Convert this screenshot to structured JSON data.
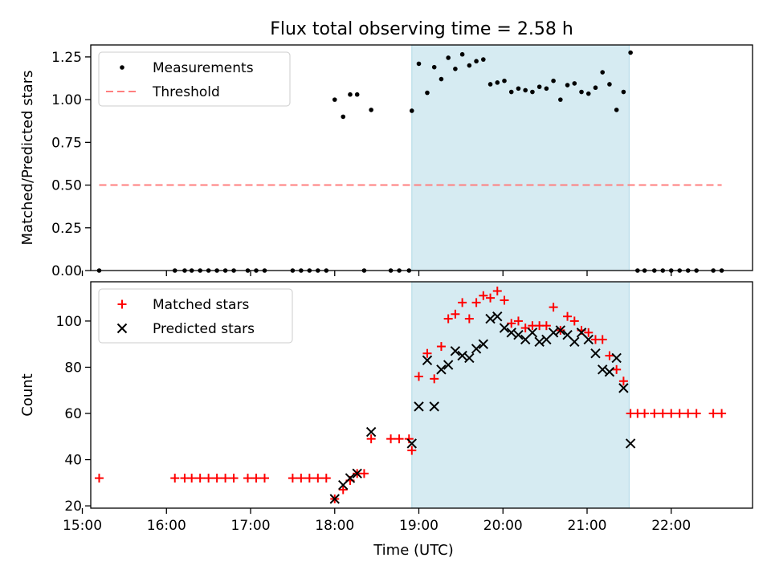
{
  "figure_title": "Flux total observing time = 2.58 h",
  "colors": {
    "measurement": "#000000",
    "threshold": "#ff7f7f",
    "matched": "#ff0000",
    "predicted": "#000000",
    "shaded_span": "#add8e6"
  },
  "chart_data": [
    {
      "type": "scatter",
      "title": "Flux total observing time = 2.58 h",
      "xlabel": "",
      "ylabel": "Matched/Predicted stars",
      "xlim": [
        "15:06",
        "22:58"
      ],
      "ylim": [
        0.0,
        1.32
      ],
      "yticks": [
        0.0,
        0.25,
        0.5,
        0.75,
        1.0,
        1.25
      ],
      "ytick_labels": [
        "0.00",
        "0.25",
        "0.50",
        "0.75",
        "1.00",
        "1.25"
      ],
      "xtick_labels_shown": false,
      "shaded_span": {
        "start": "18:55",
        "end": "21:30"
      },
      "legend": {
        "position": "top-left",
        "entries": [
          "Measurements",
          "Threshold"
        ]
      },
      "series": [
        {
          "name": "Measurements",
          "marker": "dot",
          "points": [
            [
              "15:12",
              0
            ],
            [
              "16:06",
              0
            ],
            [
              "16:13",
              0
            ],
            [
              "16:18",
              0
            ],
            [
              "16:24",
              0
            ],
            [
              "16:30",
              0
            ],
            [
              "16:36",
              0
            ],
            [
              "16:42",
              0
            ],
            [
              "16:48",
              0
            ],
            [
              "16:58",
              0
            ],
            [
              "17:04",
              0
            ],
            [
              "17:10",
              0
            ],
            [
              "17:30",
              0
            ],
            [
              "17:36",
              0
            ],
            [
              "17:42",
              0
            ],
            [
              "17:48",
              0
            ],
            [
              "17:54",
              0
            ],
            [
              "18:00",
              1.0
            ],
            [
              "18:06",
              0.9
            ],
            [
              "18:11",
              1.03
            ],
            [
              "18:16",
              1.03
            ],
            [
              "18:21",
              0
            ],
            [
              "18:26",
              0.94
            ],
            [
              "18:40",
              0
            ],
            [
              "18:46",
              0
            ],
            [
              "18:53",
              0
            ],
            [
              "18:55",
              0.935
            ],
            [
              "19:00",
              1.21
            ],
            [
              "19:06",
              1.04
            ],
            [
              "19:11",
              1.19
            ],
            [
              "19:16",
              1.12
            ],
            [
              "19:21",
              1.245
            ],
            [
              "19:26",
              1.18
            ],
            [
              "19:31",
              1.265
            ],
            [
              "19:36",
              1.2
            ],
            [
              "19:41",
              1.225
            ],
            [
              "19:46",
              1.235
            ],
            [
              "19:51",
              1.09
            ],
            [
              "19:56",
              1.1
            ],
            [
              "20:01",
              1.11
            ],
            [
              "20:06",
              1.045
            ],
            [
              "20:11",
              1.065
            ],
            [
              "20:16",
              1.055
            ],
            [
              "20:21",
              1.045
            ],
            [
              "20:26",
              1.075
            ],
            [
              "20:31",
              1.065
            ],
            [
              "20:36",
              1.11
            ],
            [
              "20:41",
              1.0
            ],
            [
              "20:46",
              1.085
            ],
            [
              "20:51",
              1.095
            ],
            [
              "20:56",
              1.045
            ],
            [
              "21:01",
              1.035
            ],
            [
              "21:06",
              1.07
            ],
            [
              "21:11",
              1.16
            ],
            [
              "21:16",
              1.09
            ],
            [
              "21:21",
              0.94
            ],
            [
              "21:26",
              1.045
            ],
            [
              "21:31",
              1.275
            ],
            [
              "21:36",
              0
            ],
            [
              "21:41",
              0
            ],
            [
              "21:48",
              0
            ],
            [
              "21:54",
              0
            ],
            [
              "22:00",
              0
            ],
            [
              "22:06",
              0
            ],
            [
              "22:12",
              0
            ],
            [
              "22:18",
              0
            ],
            [
              "22:30",
              0
            ],
            [
              "22:36",
              0
            ]
          ]
        },
        {
          "name": "Threshold",
          "style": "dashed",
          "points": [
            [
              "15:12",
              0.5
            ],
            [
              "22:36",
              0.5
            ]
          ]
        }
      ]
    },
    {
      "type": "scatter",
      "title": "",
      "xlabel": "Time (UTC)",
      "ylabel": "Count",
      "xlim": [
        "15:06",
        "22:58"
      ],
      "ylim": [
        19,
        117
      ],
      "yticks": [
        20,
        40,
        60,
        80,
        100
      ],
      "ytick_labels": [
        "20",
        "40",
        "60",
        "80",
        "100"
      ],
      "xticks": [
        "15:00",
        "16:00",
        "17:00",
        "18:00",
        "19:00",
        "20:00",
        "21:00",
        "22:00"
      ],
      "xtick_labels": [
        "15:00",
        "16:00",
        "17:00",
        "18:00",
        "19:00",
        "20:00",
        "21:00",
        "22:00"
      ],
      "shaded_span": {
        "start": "18:55",
        "end": "21:30"
      },
      "legend": {
        "position": "top-left",
        "entries": [
          "Matched stars",
          "Predicted stars"
        ]
      },
      "series": [
        {
          "name": "Matched stars",
          "marker": "plus",
          "points": [
            [
              "15:12",
              32
            ],
            [
              "16:06",
              32
            ],
            [
              "16:13",
              32
            ],
            [
              "16:18",
              32
            ],
            [
              "16:24",
              32
            ],
            [
              "16:30",
              32
            ],
            [
              "16:36",
              32
            ],
            [
              "16:42",
              32
            ],
            [
              "16:48",
              32
            ],
            [
              "16:58",
              32
            ],
            [
              "17:04",
              32
            ],
            [
              "17:10",
              32
            ],
            [
              "17:30",
              32
            ],
            [
              "17:36",
              32
            ],
            [
              "17:42",
              32
            ],
            [
              "17:48",
              32
            ],
            [
              "17:54",
              32
            ],
            [
              "18:00",
              23
            ],
            [
              "18:06",
              27
            ],
            [
              "18:11",
              31
            ],
            [
              "18:16",
              34
            ],
            [
              "18:21",
              34
            ],
            [
              "18:26",
              49
            ],
            [
              "18:40",
              49
            ],
            [
              "18:46",
              49
            ],
            [
              "18:53",
              49
            ],
            [
              "18:55",
              44
            ],
            [
              "19:00",
              76
            ],
            [
              "19:06",
              86
            ],
            [
              "19:11",
              75
            ],
            [
              "19:16",
              89
            ],
            [
              "19:21",
              101
            ],
            [
              "19:26",
              103
            ],
            [
              "19:31",
              108
            ],
            [
              "19:36",
              101
            ],
            [
              "19:41",
              108
            ],
            [
              "19:46",
              111
            ],
            [
              "19:51",
              110
            ],
            [
              "19:56",
              113
            ],
            [
              "20:01",
              109
            ],
            [
              "20:06",
              99
            ],
            [
              "20:11",
              100
            ],
            [
              "20:16",
              97
            ],
            [
              "20:21",
              98
            ],
            [
              "20:26",
              98
            ],
            [
              "20:31",
              98
            ],
            [
              "20:36",
              106
            ],
            [
              "20:41",
              96
            ],
            [
              "20:46",
              102
            ],
            [
              "20:51",
              100
            ],
            [
              "20:56",
              96
            ],
            [
              "21:01",
              95
            ],
            [
              "21:06",
              92
            ],
            [
              "21:11",
              92
            ],
            [
              "21:16",
              85
            ],
            [
              "21:21",
              79
            ],
            [
              "21:26",
              74
            ],
            [
              "21:31",
              60
            ],
            [
              "21:36",
              60
            ],
            [
              "21:41",
              60
            ],
            [
              "21:48",
              60
            ],
            [
              "21:54",
              60
            ],
            [
              "22:00",
              60
            ],
            [
              "22:06",
              60
            ],
            [
              "22:12",
              60
            ],
            [
              "22:18",
              60
            ],
            [
              "22:30",
              60
            ],
            [
              "22:36",
              60
            ]
          ]
        },
        {
          "name": "Predicted stars",
          "marker": "x",
          "points": [
            [
              "18:00",
              23
            ],
            [
              "18:06",
              29
            ],
            [
              "18:11",
              32
            ],
            [
              "18:16",
              34
            ],
            [
              "18:26",
              52
            ],
            [
              "18:55",
              47
            ],
            [
              "19:00",
              63
            ],
            [
              "19:06",
              83
            ],
            [
              "19:11",
              63
            ],
            [
              "19:16",
              79
            ],
            [
              "19:21",
              81
            ],
            [
              "19:26",
              87
            ],
            [
              "19:31",
              85
            ],
            [
              "19:36",
              84
            ],
            [
              "19:41",
              88
            ],
            [
              "19:46",
              90
            ],
            [
              "19:51",
              101
            ],
            [
              "19:56",
              102
            ],
            [
              "20:01",
              97
            ],
            [
              "20:06",
              95
            ],
            [
              "20:11",
              94
            ],
            [
              "20:16",
              92
            ],
            [
              "20:21",
              95
            ],
            [
              "20:26",
              91
            ],
            [
              "20:31",
              92
            ],
            [
              "20:36",
              95
            ],
            [
              "20:41",
              96
            ],
            [
              "20:46",
              94
            ],
            [
              "20:51",
              91
            ],
            [
              "20:56",
              95
            ],
            [
              "21:01",
              92
            ],
            [
              "21:06",
              86
            ],
            [
              "21:11",
              79
            ],
            [
              "21:16",
              78
            ],
            [
              "21:21",
              84
            ],
            [
              "21:26",
              71
            ],
            [
              "21:31",
              47
            ]
          ]
        }
      ]
    }
  ]
}
